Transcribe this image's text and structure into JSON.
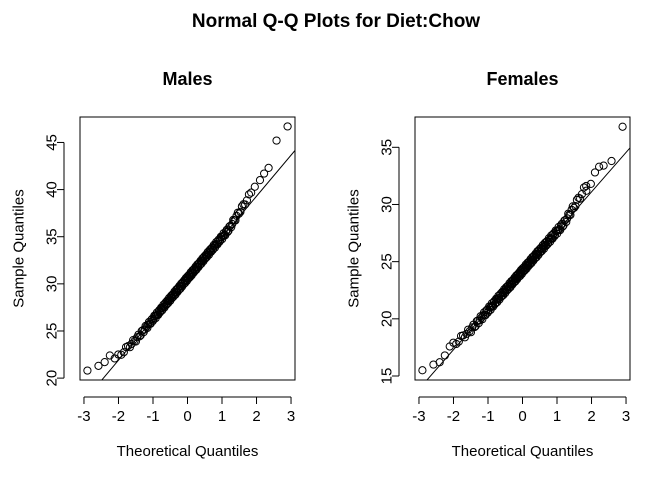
{
  "figure": {
    "title": "Normal Q-Q Plots for Diet:Chow"
  },
  "chart_data": [
    {
      "type": "scatter",
      "title": "Males",
      "xlabel": "Theoretical Quantiles",
      "ylabel": "Sample Quantiles",
      "xlim": [
        -3,
        3
      ],
      "ylim": [
        20,
        47
      ],
      "xticks": [
        "-3",
        "-2",
        "-1",
        "0",
        "1",
        "2",
        "3"
      ],
      "yticks": [
        "20",
        "25",
        "30",
        "35",
        "40",
        "45"
      ],
      "sample_min": 20.8,
      "sample_max": 46.7,
      "n": 200,
      "reference_line": {
        "intercept": 30.6,
        "slope": 4.35
      },
      "tail_points": [
        [
          -2.9,
          20.8
        ],
        [
          -2.58,
          21.3
        ],
        [
          -2.4,
          21.7
        ],
        [
          -2.25,
          22.4
        ],
        [
          1.95,
          40.3
        ],
        [
          2.1,
          41.0
        ],
        [
          2.22,
          41.7
        ],
        [
          2.35,
          42.3
        ],
        [
          2.58,
          45.2
        ],
        [
          2.9,
          46.7
        ]
      ],
      "grid": false,
      "legend": "none"
    },
    {
      "type": "scatter",
      "title": "Females",
      "xlabel": "Theoretical Quantiles",
      "ylabel": "Sample Quantiles",
      "xlim": [
        -3,
        3
      ],
      "ylim": [
        15,
        37
      ],
      "xticks": [
        "-3",
        "-2",
        "-1",
        "0",
        "1",
        "2",
        "3"
      ],
      "yticks": [
        "15",
        "20",
        "25",
        "30",
        "35"
      ],
      "sample_min": 15.5,
      "sample_max": 36.8,
      "n": 200,
      "reference_line": {
        "intercept": 24.2,
        "slope": 3.45
      },
      "tail_points": [
        [
          -2.9,
          15.5
        ],
        [
          -2.58,
          16.0
        ],
        [
          -2.4,
          16.2
        ],
        [
          -2.25,
          16.8
        ],
        [
          1.85,
          31.2
        ],
        [
          1.98,
          31.8
        ],
        [
          2.1,
          32.8
        ],
        [
          2.22,
          33.3
        ],
        [
          2.35,
          33.4
        ],
        [
          2.58,
          33.8
        ],
        [
          2.9,
          36.8
        ]
      ],
      "grid": false,
      "legend": "none"
    }
  ]
}
